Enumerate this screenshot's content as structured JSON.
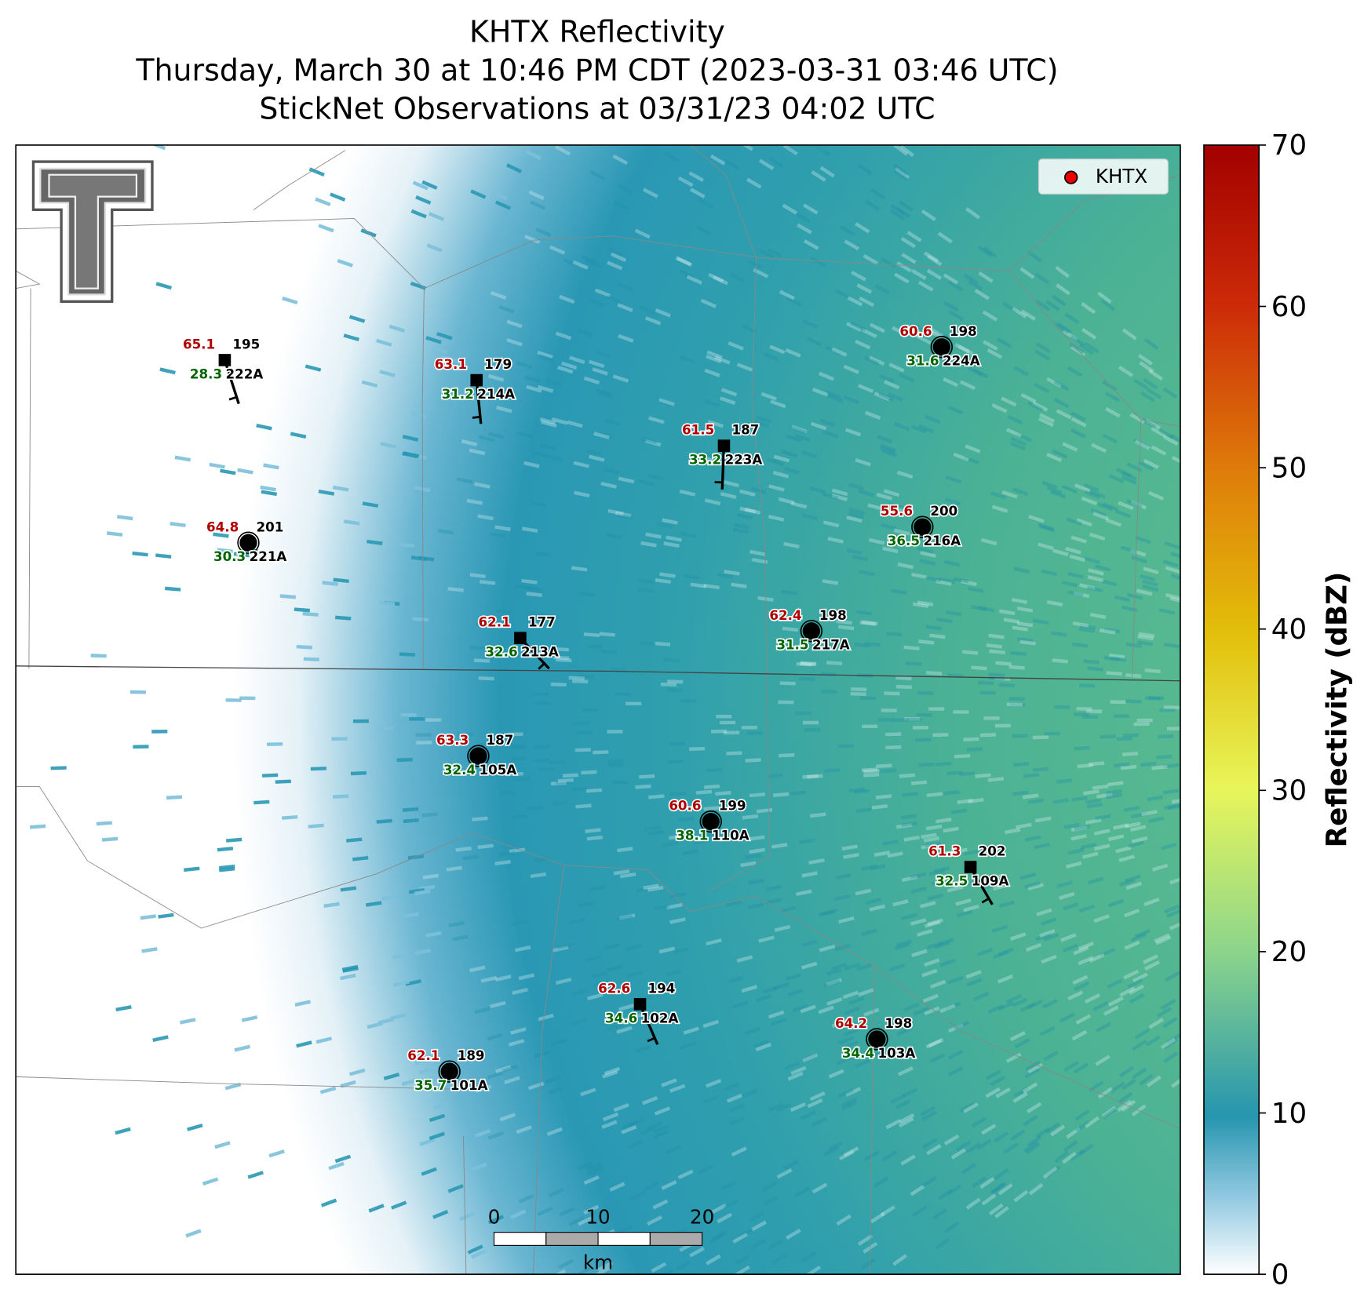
{
  "title": [
    "KHTX Reflectivity",
    "Thursday, March 30 at 10:46 PM CDT (2023-03-31 03:46 UTC)",
    "StickNet Observations at 03/31/23 04:02 UTC"
  ],
  "legend": {
    "label": "KHTX"
  },
  "colorbar": {
    "label": "Reflectivity (dBZ)",
    "lim": [
      0,
      70
    ],
    "ticks": [
      0,
      10,
      20,
      30,
      40,
      50,
      60,
      70
    ]
  },
  "scale_bar": {
    "ticks": [
      0,
      10,
      20
    ],
    "unit": "km"
  },
  "stations": [
    {
      "id": "222A",
      "temperature": 65.1,
      "dewpoint": 28.3,
      "value": 195
    },
    {
      "id": "214A",
      "temperature": 63.1,
      "dewpoint": 31.2,
      "value": 179
    },
    {
      "id": "223A",
      "temperature": 61.5,
      "dewpoint": 33.2,
      "value": 187
    },
    {
      "id": "224A",
      "temperature": 60.6,
      "dewpoint": 31.6,
      "value": 198
    },
    {
      "id": "221A",
      "temperature": 64.8,
      "dewpoint": 30.3,
      "value": 201
    },
    {
      "id": "216A",
      "temperature": 55.6,
      "dewpoint": 36.5,
      "value": 200
    },
    {
      "id": "213A",
      "temperature": 62.1,
      "dewpoint": 32.6,
      "value": 177
    },
    {
      "id": "217A",
      "temperature": 62.4,
      "dewpoint": 31.5,
      "value": 198
    },
    {
      "id": "105A",
      "temperature": 63.3,
      "dewpoint": 32.4,
      "value": 187
    },
    {
      "id": "110A",
      "temperature": 60.6,
      "dewpoint": 38.1,
      "value": 199
    },
    {
      "id": "109A",
      "temperature": 61.3,
      "dewpoint": 32.5,
      "value": 202
    },
    {
      "id": "102A",
      "temperature": 62.6,
      "dewpoint": 34.6,
      "value": 194
    },
    {
      "id": "103A",
      "temperature": 64.2,
      "dewpoint": 34.4,
      "value": 198
    },
    {
      "id": "101A",
      "temperature": 62.1,
      "dewpoint": 35.7,
      "value": 189
    }
  ]
}
